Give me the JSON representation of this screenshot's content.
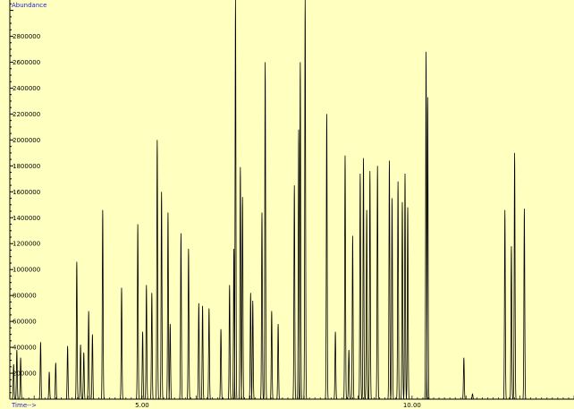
{
  "colors": {
    "background": "#ffffc0",
    "axis": "#000000",
    "trace": "#000000",
    "caption": "#2222cc"
  },
  "chart_data": {
    "type": "line",
    "title": "",
    "ylabel": "Abundance",
    "xlabel": "Time-->",
    "xlim": [
      2.55,
      13.0
    ],
    "ylim": [
      0,
      3080000
    ],
    "grid": false,
    "x_ticks": [
      5.0,
      10.0
    ],
    "x_tick_labels": [
      "5.00",
      "10.00"
    ],
    "y_ticks": [
      200000,
      400000,
      600000,
      800000,
      1000000,
      1200000,
      1400000,
      1600000,
      1800000,
      2000000,
      2200000,
      2400000,
      2600000,
      2800000
    ],
    "y_tick_labels": [
      "200000",
      "400000",
      "600000",
      "800000",
      "1000000",
      "1200000",
      "1400000",
      "1600000",
      "1800000",
      "2000000",
      "2200000",
      "2400000",
      "2600000",
      "2800000"
    ],
    "series": [
      {
        "peaks": [
          {
            "t": 2.62,
            "h": 270000
          },
          {
            "t": 2.68,
            "h": 380000
          },
          {
            "t": 2.75,
            "h": 320000
          },
          {
            "t": 3.12,
            "h": 440000
          },
          {
            "t": 3.28,
            "h": 210000
          },
          {
            "t": 3.4,
            "h": 280000
          },
          {
            "t": 3.62,
            "h": 410000
          },
          {
            "t": 3.79,
            "h": 1060000
          },
          {
            "t": 3.86,
            "h": 420000
          },
          {
            "t": 3.92,
            "h": 360000
          },
          {
            "t": 4.01,
            "h": 680000
          },
          {
            "t": 4.08,
            "h": 500000
          },
          {
            "t": 4.27,
            "h": 1460000
          },
          {
            "t": 4.62,
            "h": 860000
          },
          {
            "t": 4.92,
            "h": 1350000
          },
          {
            "t": 5.01,
            "h": 520000
          },
          {
            "t": 5.08,
            "h": 880000
          },
          {
            "t": 5.18,
            "h": 820000
          },
          {
            "t": 5.28,
            "h": 2000000
          },
          {
            "t": 5.36,
            "h": 1600000
          },
          {
            "t": 5.48,
            "h": 1440000
          },
          {
            "t": 5.52,
            "h": 580000
          },
          {
            "t": 5.72,
            "h": 1280000
          },
          {
            "t": 5.86,
            "h": 1160000
          },
          {
            "t": 6.05,
            "h": 740000
          },
          {
            "t": 6.12,
            "h": 720000
          },
          {
            "t": 6.24,
            "h": 700000
          },
          {
            "t": 6.46,
            "h": 540000
          },
          {
            "t": 6.62,
            "h": 880000
          },
          {
            "t": 6.7,
            "h": 1160000
          },
          {
            "t": 6.73,
            "h": 3080000
          },
          {
            "t": 6.82,
            "h": 1790000
          },
          {
            "t": 6.86,
            "h": 1560000
          },
          {
            "t": 7.01,
            "h": 820000
          },
          {
            "t": 7.05,
            "h": 760000
          },
          {
            "t": 7.22,
            "h": 1440000
          },
          {
            "t": 7.28,
            "h": 2600000
          },
          {
            "t": 7.4,
            "h": 680000
          },
          {
            "t": 7.52,
            "h": 580000
          },
          {
            "t": 7.82,
            "h": 1650000
          },
          {
            "t": 7.9,
            "h": 2080000
          },
          {
            "t": 7.93,
            "h": 2600000
          },
          {
            "t": 8.02,
            "h": 3080000
          },
          {
            "t": 8.42,
            "h": 2200000
          },
          {
            "t": 8.58,
            "h": 520000
          },
          {
            "t": 8.76,
            "h": 1880000
          },
          {
            "t": 8.83,
            "h": 380000
          },
          {
            "t": 8.9,
            "h": 1260000
          },
          {
            "t": 9.04,
            "h": 1740000
          },
          {
            "t": 9.1,
            "h": 1860000
          },
          {
            "t": 9.16,
            "h": 1460000
          },
          {
            "t": 9.22,
            "h": 1760000
          },
          {
            "t": 9.36,
            "h": 1800000
          },
          {
            "t": 9.58,
            "h": 1840000
          },
          {
            "t": 9.63,
            "h": 1550000
          },
          {
            "t": 9.74,
            "h": 1680000
          },
          {
            "t": 9.82,
            "h": 1520000
          },
          {
            "t": 9.87,
            "h": 1740000
          },
          {
            "t": 9.92,
            "h": 1480000
          },
          {
            "t": 10.26,
            "h": 2680000
          },
          {
            "t": 10.29,
            "h": 2330000
          },
          {
            "t": 10.96,
            "h": 320000
          },
          {
            "t": 11.12,
            "h": 40000
          },
          {
            "t": 11.72,
            "h": 1460000
          },
          {
            "t": 11.84,
            "h": 1180000
          },
          {
            "t": 11.9,
            "h": 1900000
          },
          {
            "t": 12.08,
            "h": 1470000
          }
        ]
      }
    ]
  }
}
